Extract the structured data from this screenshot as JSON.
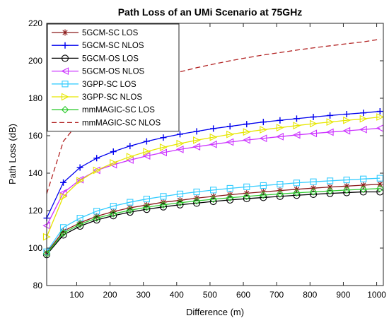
{
  "chart_data": {
    "type": "line",
    "title": "Path Loss of an UMi Scenario at 75GHz",
    "xlabel": "Difference (m)",
    "ylabel": "Path Loss (dB)",
    "xlim": [
      10,
      1020
    ],
    "ylim": [
      80,
      220
    ],
    "xticks": [
      100,
      200,
      300,
      400,
      500,
      600,
      700,
      800,
      900,
      1000
    ],
    "yticks": [
      80,
      100,
      120,
      140,
      160,
      180,
      200,
      220
    ],
    "grid": false,
    "legend_position": "top-left",
    "x": [
      10,
      60,
      110,
      160,
      210,
      260,
      310,
      360,
      410,
      460,
      510,
      560,
      610,
      660,
      710,
      760,
      810,
      860,
      910,
      960,
      1010
    ],
    "series": [
      {
        "name": "5GCM-SC LOS",
        "color": "#8b1a1a",
        "marker": "asterisk",
        "dash": "solid",
        "values": [
          97.5,
          109.0,
          113.5,
          117.0,
          119.5,
          121.5,
          123.0,
          124.5,
          125.5,
          126.7,
          127.6,
          128.5,
          129.3,
          130.0,
          130.7,
          131.4,
          132.0,
          132.6,
          133.1,
          133.6,
          134.1
        ]
      },
      {
        "name": "5GCM-SC NLOS",
        "color": "#0000ee",
        "marker": "plus",
        "dash": "solid",
        "values": [
          116.0,
          135.0,
          143.0,
          148.0,
          151.5,
          154.5,
          157.0,
          159.0,
          160.8,
          162.3,
          163.8,
          165.0,
          166.2,
          167.3,
          168.2,
          169.1,
          170.0,
          170.8,
          171.5,
          172.2,
          173.0
        ]
      },
      {
        "name": "5GCM-OS LOS",
        "color": "#000000",
        "marker": "circle",
        "dash": "solid",
        "values": [
          96.5,
          107.0,
          111.7,
          115.0,
          117.3,
          119.2,
          120.7,
          122.0,
          123.1,
          124.0,
          124.9,
          125.7,
          126.4,
          127.0,
          127.6,
          128.2,
          128.7,
          129.2,
          129.6,
          130.0,
          130.0
        ]
      },
      {
        "name": "5GCM-OS NLOS",
        "color": "#cc33ff",
        "marker": "triangle-left",
        "dash": "solid",
        "values": [
          112.0,
          129.5,
          136.5,
          141.5,
          144.5,
          147.0,
          149.2,
          151.0,
          152.7,
          154.1,
          155.4,
          156.6,
          157.7,
          158.6,
          159.5,
          160.4,
          161.2,
          161.9,
          162.6,
          163.3,
          164.0
        ]
      },
      {
        "name": "3GPP-SC LOS",
        "color": "#33ccff",
        "marker": "square",
        "dash": "solid",
        "values": [
          98.0,
          111.0,
          116.0,
          119.7,
          122.4,
          124.5,
          126.2,
          127.6,
          128.9,
          130.0,
          131.0,
          131.9,
          132.7,
          133.4,
          134.1,
          134.8,
          135.4,
          135.9,
          136.4,
          136.9,
          137.3
        ]
      },
      {
        "name": "3GPP-SC NLOS",
        "color": "#e6e600",
        "marker": "triangle-right",
        "dash": "solid",
        "values": [
          106.0,
          127.5,
          136.0,
          141.5,
          145.5,
          148.8,
          151.5,
          153.8,
          155.8,
          157.6,
          159.2,
          160.7,
          162.0,
          163.2,
          164.3,
          165.4,
          166.4,
          167.3,
          168.2,
          169.0,
          170.0
        ]
      },
      {
        "name": "mmMAGIC-SC LOS",
        "color": "#33cc33",
        "marker": "diamond",
        "dash": "solid",
        "values": [
          97.0,
          108.0,
          112.7,
          116.0,
          118.3,
          120.2,
          121.8,
          123.1,
          124.2,
          125.2,
          126.1,
          126.9,
          127.6,
          128.3,
          128.9,
          129.5,
          130.0,
          130.5,
          131.0,
          131.4,
          131.8
        ]
      },
      {
        "name": "mmMAGIC-SC NLOS",
        "color": "#b22222",
        "marker": "none",
        "dash": "dashed",
        "values": [
          129.0,
          157.0,
          168.0,
          175.5,
          181.0,
          185.3,
          188.7,
          191.6,
          194.1,
          196.3,
          198.2,
          200.0,
          201.6,
          203.1,
          204.4,
          205.7,
          206.9,
          208.0,
          209.1,
          210.1,
          211.5
        ]
      }
    ]
  }
}
